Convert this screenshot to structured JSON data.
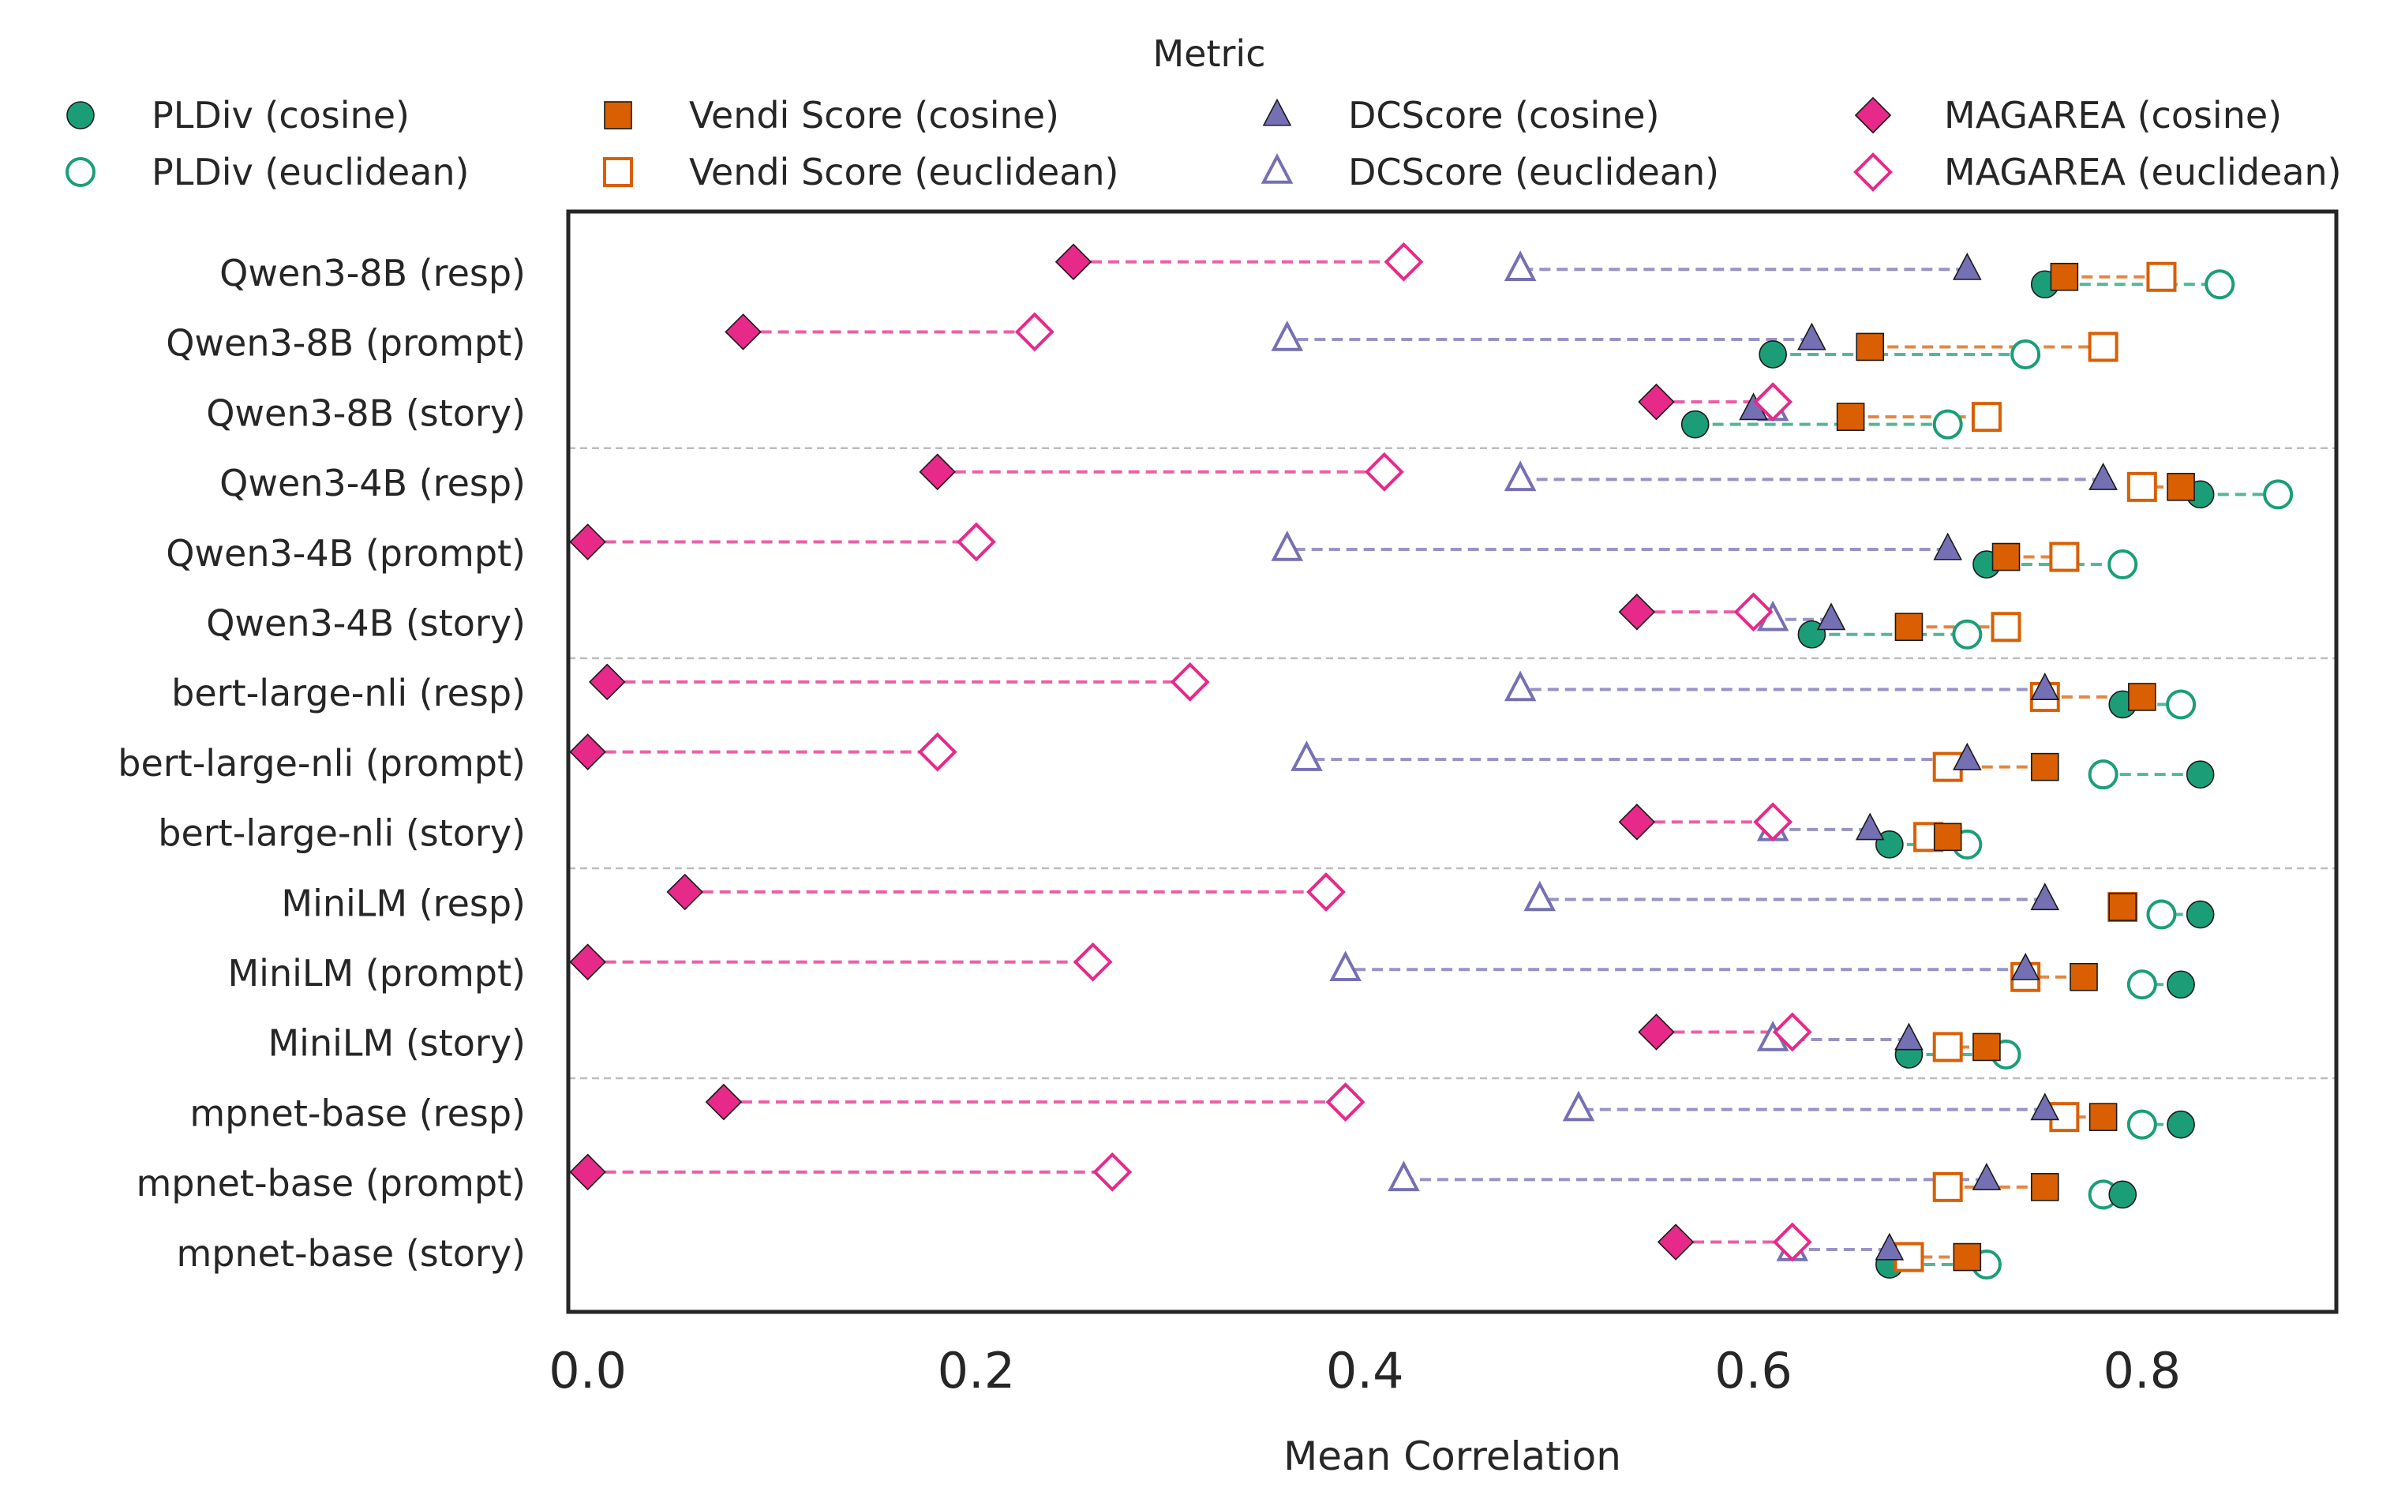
{
  "chart_data": {
    "type": "dumbbell",
    "title": "",
    "xlabel": "Mean Correlation",
    "ylabel": "",
    "xlim": [
      -0.01,
      0.9
    ],
    "xticks": [
      0.0,
      0.2,
      0.4,
      0.6,
      0.8
    ],
    "xtick_labels": [
      "0.0",
      "0.2",
      "0.4",
      "0.6",
      "0.8"
    ],
    "grid": false,
    "legend": {
      "title": "Metric",
      "position": "top",
      "entries": [
        {
          "key": "pldiv_cos",
          "label": "PLDiv (cosine)",
          "color": "#1b9e77",
          "marker": "circle",
          "filled": true
        },
        {
          "key": "vendi_cos",
          "label": "Vendi Score (cosine)",
          "color": "#d95f02",
          "marker": "square",
          "filled": true
        },
        {
          "key": "dc_cos",
          "label": "DCScore (cosine)",
          "color": "#7570b3",
          "marker": "triangle",
          "filled": true
        },
        {
          "key": "mag_cos",
          "label": "MAGAREA (cosine)",
          "color": "#e7298a",
          "marker": "diamond",
          "filled": true
        },
        {
          "key": "pldiv_euc",
          "label": "PLDiv (euclidean)",
          "color": "#1b9e77",
          "marker": "circle",
          "filled": false
        },
        {
          "key": "vendi_euc",
          "label": "Vendi Score (euclidean)",
          "color": "#d95f02",
          "marker": "square",
          "filled": false
        },
        {
          "key": "dc_euc",
          "label": "DCScore (euclidean)",
          "color": "#7570b3",
          "marker": "triangle",
          "filled": false
        },
        {
          "key": "mag_euc",
          "label": "MAGAREA (euclidean)",
          "color": "#e7298a",
          "marker": "diamond",
          "filled": false
        }
      ]
    },
    "metrics": [
      {
        "name": "PLDiv",
        "color": "#1b9e77",
        "marker": "circle"
      },
      {
        "name": "Vendi Score",
        "color": "#d95f02",
        "marker": "square"
      },
      {
        "name": "DCScore",
        "color": "#7570b3",
        "marker": "triangle"
      },
      {
        "name": "MAGAREA",
        "color": "#e7298a",
        "marker": "diamond"
      }
    ],
    "group_separators_after_rows": [
      2,
      5,
      8,
      11
    ],
    "rows": [
      {
        "label": "Qwen3-8B (resp)",
        "values": {
          "PLDiv": [
            0.75,
            0.84
          ],
          "Vendi Score": [
            0.76,
            0.81
          ],
          "DCScore": [
            0.71,
            0.48
          ],
          "MAGAREA": [
            0.25,
            0.42
          ]
        }
      },
      {
        "label": "Qwen3-8B (prompt)",
        "values": {
          "PLDiv": [
            0.61,
            0.74
          ],
          "Vendi Score": [
            0.66,
            0.78
          ],
          "DCScore": [
            0.63,
            0.36
          ],
          "MAGAREA": [
            0.08,
            0.23
          ]
        }
      },
      {
        "label": "Qwen3-8B (story)",
        "values": {
          "PLDiv": [
            0.57,
            0.7
          ],
          "Vendi Score": [
            0.65,
            0.72
          ],
          "DCScore": [
            0.6,
            0.61
          ],
          "MAGAREA": [
            0.55,
            0.61
          ]
        }
      },
      {
        "label": "Qwen3-4B (resp)",
        "values": {
          "PLDiv": [
            0.83,
            0.87
          ],
          "Vendi Score": [
            0.82,
            0.8
          ],
          "DCScore": [
            0.78,
            0.48
          ],
          "MAGAREA": [
            0.18,
            0.41
          ]
        }
      },
      {
        "label": "Qwen3-4B (prompt)",
        "values": {
          "PLDiv": [
            0.72,
            0.79
          ],
          "Vendi Score": [
            0.73,
            0.76
          ],
          "DCScore": [
            0.7,
            0.36
          ],
          "MAGAREA": [
            0.0,
            0.2
          ]
        }
      },
      {
        "label": "Qwen3-4B (story)",
        "values": {
          "PLDiv": [
            0.63,
            0.71
          ],
          "Vendi Score": [
            0.68,
            0.73
          ],
          "DCScore": [
            0.64,
            0.61
          ],
          "MAGAREA": [
            0.54,
            0.6
          ]
        }
      },
      {
        "label": "bert-large-nli (resp)",
        "values": {
          "PLDiv": [
            0.79,
            0.82
          ],
          "Vendi Score": [
            0.8,
            0.75
          ],
          "DCScore": [
            0.75,
            0.48
          ],
          "MAGAREA": [
            0.01,
            0.31
          ]
        }
      },
      {
        "label": "bert-large-nli (prompt)",
        "values": {
          "PLDiv": [
            0.83,
            0.78
          ],
          "Vendi Score": [
            0.75,
            0.7
          ],
          "DCScore": [
            0.71,
            0.37
          ],
          "MAGAREA": [
            0.0,
            0.18
          ]
        }
      },
      {
        "label": "bert-large-nli (story)",
        "values": {
          "PLDiv": [
            0.67,
            0.71
          ],
          "Vendi Score": [
            0.7,
            0.69
          ],
          "DCScore": [
            0.66,
            0.61
          ],
          "MAGAREA": [
            0.54,
            0.61
          ]
        }
      },
      {
        "label": "MiniLM (resp)",
        "values": {
          "PLDiv": [
            0.83,
            0.81
          ],
          "Vendi Score": [
            0.79,
            0.79
          ],
          "DCScore": [
            0.75,
            0.49
          ],
          "MAGAREA": [
            0.05,
            0.38
          ]
        }
      },
      {
        "label": "MiniLM (prompt)",
        "values": {
          "PLDiv": [
            0.82,
            0.8
          ],
          "Vendi Score": [
            0.77,
            0.74
          ],
          "DCScore": [
            0.74,
            0.39
          ],
          "MAGAREA": [
            0.0,
            0.26
          ]
        }
      },
      {
        "label": "MiniLM (story)",
        "values": {
          "PLDiv": [
            0.68,
            0.73
          ],
          "Vendi Score": [
            0.72,
            0.7
          ],
          "DCScore": [
            0.68,
            0.61
          ],
          "MAGAREA": [
            0.55,
            0.62
          ]
        }
      },
      {
        "label": "mpnet-base (resp)",
        "values": {
          "PLDiv": [
            0.82,
            0.8
          ],
          "Vendi Score": [
            0.78,
            0.76
          ],
          "DCScore": [
            0.75,
            0.51
          ],
          "MAGAREA": [
            0.07,
            0.39
          ]
        }
      },
      {
        "label": "mpnet-base (prompt)",
        "values": {
          "PLDiv": [
            0.79,
            0.78
          ],
          "Vendi Score": [
            0.75,
            0.7
          ],
          "DCScore": [
            0.72,
            0.42
          ],
          "MAGAREA": [
            0.0,
            0.27
          ]
        }
      },
      {
        "label": "mpnet-base (story)",
        "values": {
          "PLDiv": [
            0.67,
            0.72
          ],
          "Vendi Score": [
            0.71,
            0.68
          ],
          "DCScore": [
            0.67,
            0.62
          ],
          "MAGAREA": [
            0.56,
            0.62
          ]
        }
      }
    ]
  }
}
